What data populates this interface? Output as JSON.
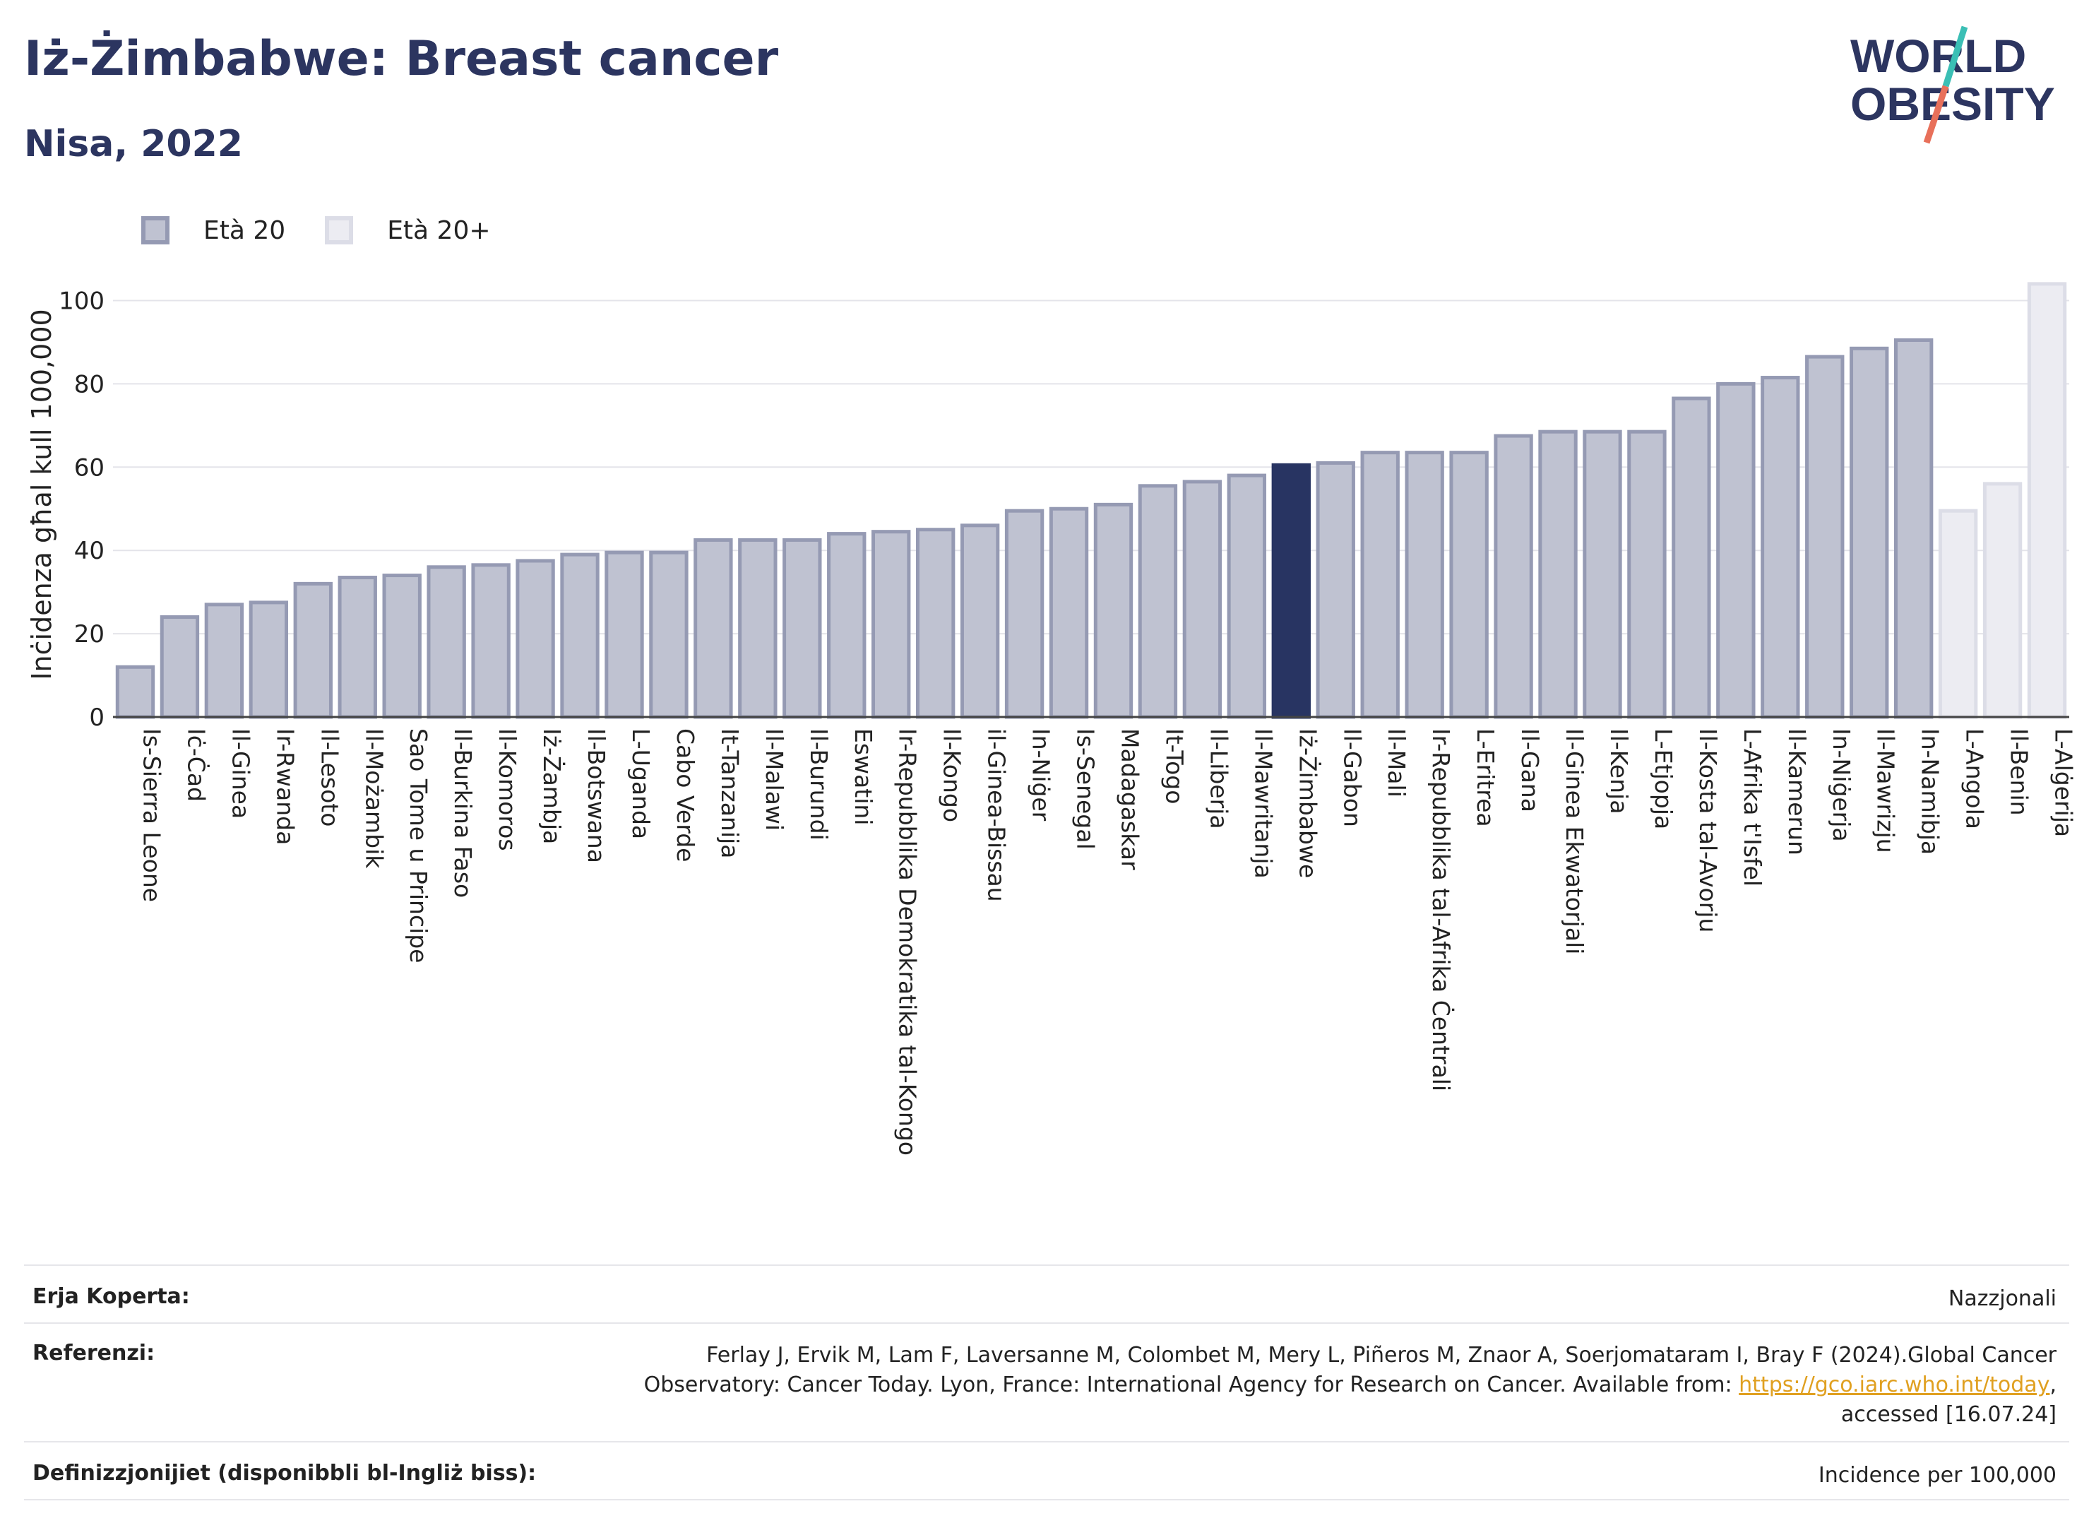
{
  "header": {
    "title": "Iż-Żimbabwe: Breast cancer",
    "subtitle": "Nisa, 2022"
  },
  "logo": {
    "line1": "WORLD",
    "line2": "OBESITY"
  },
  "colors": {
    "title": "#2c3560",
    "bar_age20": "#bfc2d1",
    "bar_age20_edge": "#959ab3",
    "bar_age20plus": "#ececf2",
    "bar_age20plus_edge": "#dcdde7",
    "highlight": "#283462",
    "logo_teal": "#3bbfb5",
    "logo_coral": "#e8705a"
  },
  "chart_data": {
    "type": "bar",
    "ylabel": "Inċidenza għal kull 100,000",
    "ylim": [
      0,
      105
    ],
    "yticks": [
      0,
      20,
      40,
      60,
      80,
      100
    ],
    "grid": true,
    "legend_position": "top-left",
    "highlight_category": "Iż-Żimbabwe",
    "series": [
      {
        "name": "Età 20",
        "key": "age20"
      },
      {
        "name": "Età 20+",
        "key": "age20plus"
      }
    ],
    "bars": [
      {
        "category": "Is-Sierra Leone",
        "value": 12,
        "series": "age20"
      },
      {
        "category": "Iċ-Ċad",
        "value": 24,
        "series": "age20"
      },
      {
        "category": "Il-Ginea",
        "value": 27,
        "series": "age20"
      },
      {
        "category": "Ir-Rwanda",
        "value": 27.5,
        "series": "age20"
      },
      {
        "category": "Il-Lesoto",
        "value": 32,
        "series": "age20"
      },
      {
        "category": "Il-Możambik",
        "value": 33.5,
        "series": "age20"
      },
      {
        "category": "Sao Tome u Principe",
        "value": 34,
        "series": "age20"
      },
      {
        "category": "Il-Burkina Faso",
        "value": 36,
        "series": "age20"
      },
      {
        "category": "Il-Komoros",
        "value": 36.5,
        "series": "age20"
      },
      {
        "category": "Iż-Żambja",
        "value": 37.5,
        "series": "age20"
      },
      {
        "category": "Il-Botswana",
        "value": 39,
        "series": "age20"
      },
      {
        "category": "L-Uganda",
        "value": 39.5,
        "series": "age20"
      },
      {
        "category": "Cabo Verde",
        "value": 39.5,
        "series": "age20"
      },
      {
        "category": "It-Tanzanija",
        "value": 42.5,
        "series": "age20"
      },
      {
        "category": "Il-Malawi",
        "value": 42.5,
        "series": "age20"
      },
      {
        "category": "Il-Burundi",
        "value": 42.5,
        "series": "age20"
      },
      {
        "category": "Eswatini",
        "value": 44,
        "series": "age20"
      },
      {
        "category": "Ir-Repubblika Demokratika tal-Kongo",
        "value": 44.5,
        "series": "age20"
      },
      {
        "category": "Il-Kongo",
        "value": 45,
        "series": "age20"
      },
      {
        "category": "il-Ginea-Bissau",
        "value": 46,
        "series": "age20"
      },
      {
        "category": "In-Niġer",
        "value": 49.5,
        "series": "age20"
      },
      {
        "category": "Is-Senegal",
        "value": 50,
        "series": "age20"
      },
      {
        "category": "Madagaskar",
        "value": 51,
        "series": "age20"
      },
      {
        "category": "It-Togo",
        "value": 55.5,
        "series": "age20"
      },
      {
        "category": "Il-Liberja",
        "value": 56.5,
        "series": "age20"
      },
      {
        "category": "Il-Mawritanja",
        "value": 58,
        "series": "age20"
      },
      {
        "category": "Iż-Żimbabwe",
        "value": 60.5,
        "series": "age20"
      },
      {
        "category": "Il-Gabon",
        "value": 61,
        "series": "age20"
      },
      {
        "category": "Il-Mali",
        "value": 63.5,
        "series": "age20"
      },
      {
        "category": "Ir-Repubblika tal-Afrika Ċentrali",
        "value": 63.5,
        "series": "age20"
      },
      {
        "category": "L-Eritrea",
        "value": 63.5,
        "series": "age20"
      },
      {
        "category": "Il-Gana",
        "value": 67.5,
        "series": "age20"
      },
      {
        "category": "Il-Ginea Ekwatorjali",
        "value": 68.5,
        "series": "age20"
      },
      {
        "category": "Il-Kenja",
        "value": 68.5,
        "series": "age20"
      },
      {
        "category": "L-Etjopja",
        "value": 68.5,
        "series": "age20"
      },
      {
        "category": "Il-Kosta tal-Avorju",
        "value": 76.5,
        "series": "age20"
      },
      {
        "category": "L-Afrika t'Isfel",
        "value": 80,
        "series": "age20"
      },
      {
        "category": "Il-Kamerun",
        "value": 81.5,
        "series": "age20"
      },
      {
        "category": "In-Niġerja",
        "value": 86.5,
        "series": "age20"
      },
      {
        "category": "Il-Mawrizju",
        "value": 88.5,
        "series": "age20"
      },
      {
        "category": "In-Namibja",
        "value": 90.5,
        "series": "age20"
      },
      {
        "category": "L-Angola",
        "value": 49.5,
        "series": "age20plus"
      },
      {
        "category": "Il-Benin",
        "value": 56,
        "series": "age20plus"
      },
      {
        "category": "L-Alġerija",
        "value": 104,
        "series": "age20plus"
      }
    ]
  },
  "info": {
    "coverage_label": "Erja Koperta:",
    "coverage_value": "Nazzjonali",
    "references_label": "Referenzi:",
    "references_line1": "Ferlay J, Ervik M, Lam F, Laversanne M, Colombet M, Mery L, Piñeros M, Znaor A, Soerjomataram I, Bray F (2024).Global Cancer",
    "references_line2": "Observatory: Cancer Today. Lyon, France: International Agency for Research on Cancer. Available from: ",
    "references_link": "https://gco.iarc.who.int/today",
    "references_line2_end": ",",
    "references_line3": "accessed [16.07.24]",
    "definitions_label": "Definizzjonijiet (disponibbli bl-Ingliż biss):",
    "definitions_value": "Incidence per 100,000"
  }
}
